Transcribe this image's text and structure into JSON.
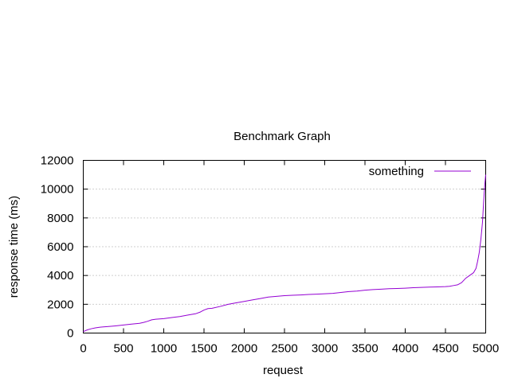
{
  "chart_data": {
    "type": "line",
    "title": "Benchmark Graph",
    "xlabel": "request",
    "ylabel": "response time (ms)",
    "xlim": [
      0,
      5000
    ],
    "ylim": [
      0,
      12000
    ],
    "xticks": [
      0,
      500,
      1000,
      1500,
      2000,
      2500,
      3000,
      3500,
      4000,
      4500,
      5000
    ],
    "yticks": [
      0,
      2000,
      4000,
      6000,
      8000,
      10000,
      12000
    ],
    "grid": "horizontal-dotted",
    "legend": "top-right",
    "series": [
      {
        "name": "something",
        "color": "#9400d3",
        "x": [
          0,
          50,
          100,
          150,
          200,
          250,
          300,
          400,
          500,
          600,
          700,
          750,
          800,
          850,
          900,
          1000,
          1100,
          1200,
          1300,
          1400,
          1450,
          1500,
          1550,
          1600,
          1700,
          1800,
          1900,
          2000,
          2100,
          2200,
          2300,
          2400,
          2500,
          2600,
          2700,
          2800,
          2900,
          3000,
          3100,
          3200,
          3300,
          3400,
          3500,
          3600,
          3700,
          3800,
          3900,
          4000,
          4100,
          4200,
          4300,
          4400,
          4500,
          4550,
          4600,
          4650,
          4700,
          4750,
          4800,
          4850,
          4880,
          4900,
          4920,
          4940,
          4960,
          4970,
          4980,
          4990,
          5000
        ],
        "y": [
          100,
          220,
          300,
          360,
          400,
          430,
          450,
          500,
          560,
          620,
          680,
          740,
          820,
          920,
          960,
          1000,
          1080,
          1150,
          1250,
          1350,
          1450,
          1600,
          1700,
          1720,
          1850,
          2000,
          2100,
          2200,
          2300,
          2400,
          2500,
          2550,
          2600,
          2630,
          2650,
          2680,
          2700,
          2730,
          2760,
          2820,
          2880,
          2920,
          2980,
          3020,
          3050,
          3080,
          3100,
          3120,
          3150,
          3170,
          3190,
          3210,
          3230,
          3250,
          3300,
          3350,
          3500,
          3800,
          4000,
          4200,
          4500,
          5000,
          5600,
          6500,
          7700,
          8700,
          9600,
          10400,
          11000
        ]
      }
    ]
  }
}
